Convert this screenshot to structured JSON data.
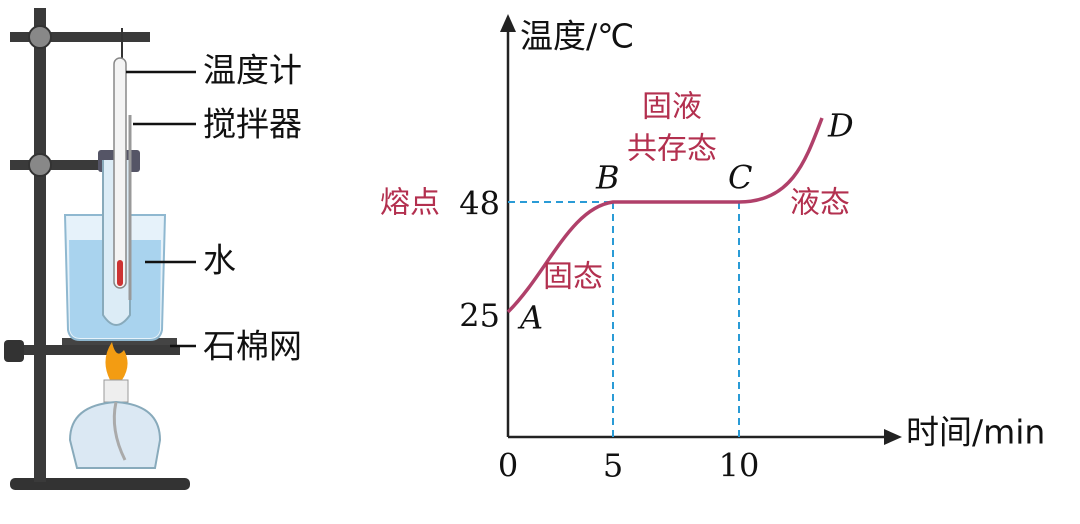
{
  "apparatus": {
    "labels": [
      "温度计",
      "搅拌器",
      "水",
      "石棉网"
    ]
  },
  "graph": {
    "y_axis_label": "温度/℃",
    "x_axis_label": "时间/min",
    "x_ticks": [
      "0",
      "5",
      "10"
    ],
    "y_ticks": [
      "48",
      "25"
    ],
    "points": [
      "A",
      "B",
      "C",
      "D"
    ],
    "annotations": {
      "melting_point": "熔点",
      "solid": "固态",
      "coexist": [
        "固液",
        "共存态"
      ],
      "liquid": "液态"
    }
  }
}
